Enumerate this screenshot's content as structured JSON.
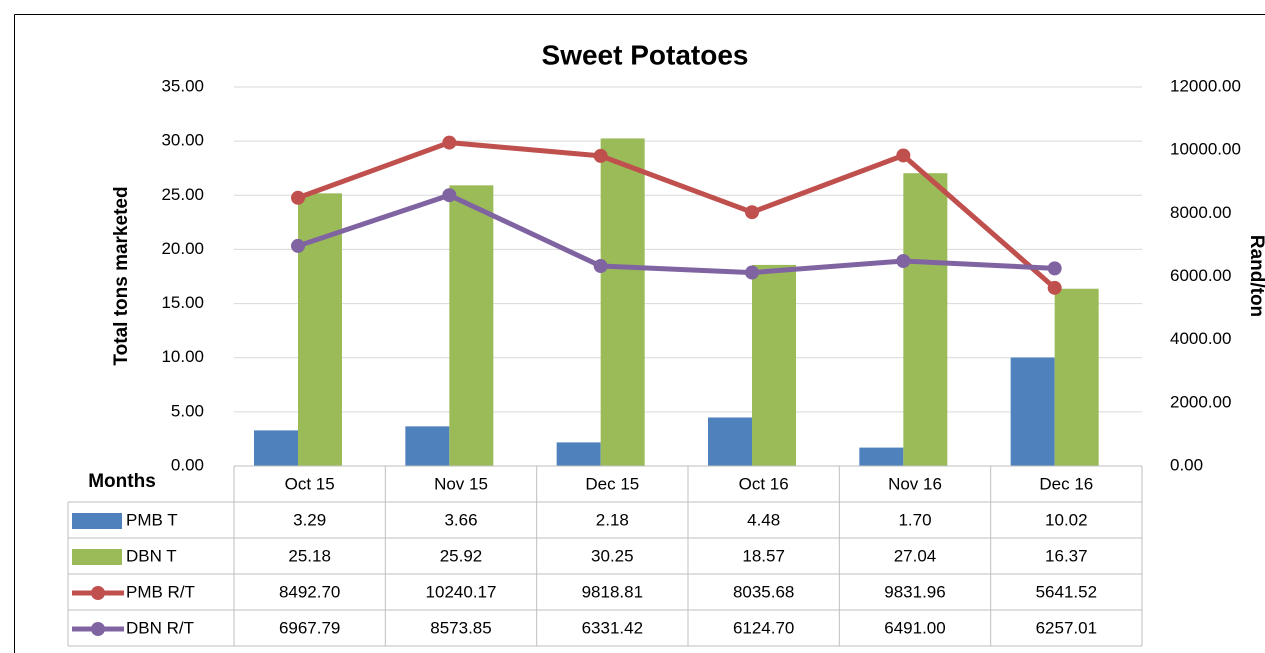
{
  "chart_data": {
    "type": "bar",
    "title": "Sweet Potatoes",
    "ylabel": "Total tons marketed",
    "y2label": "Rand/ton",
    "xlabel": "Months",
    "categories": [
      "Oct 15",
      "Nov 15",
      "Dec 15",
      "Oct 16",
      "Nov 16",
      "Dec 16"
    ],
    "series": [
      {
        "name": "PMB T",
        "type": "bar",
        "color": "#4f81bd",
        "values": [
          3.29,
          3.66,
          2.18,
          4.48,
          1.7,
          10.02
        ],
        "value_labels": [
          "3.29",
          "3.66",
          "2.18",
          "4.48",
          "1.70",
          "10.02"
        ]
      },
      {
        "name": "DBN T",
        "type": "bar",
        "color": "#9bbb59",
        "values": [
          25.18,
          25.92,
          30.25,
          18.57,
          27.04,
          16.37
        ],
        "value_labels": [
          "25.18",
          "25.92",
          "30.25",
          "18.57",
          "27.04",
          "16.37"
        ]
      },
      {
        "name": "PMB R/T",
        "type": "line",
        "axis": "y2",
        "color": "#c0504d",
        "values": [
          8492.7,
          10240.17,
          9818.81,
          8035.68,
          9831.96,
          5641.52
        ],
        "value_labels": [
          "8492.70",
          "10240.17",
          "9818.81",
          "8035.68",
          "9831.96",
          "5641.52"
        ]
      },
      {
        "name": "DBN R/T",
        "type": "line",
        "axis": "y2",
        "color": "#8064a2",
        "values": [
          6967.79,
          8573.85,
          6331.42,
          6124.7,
          6491,
          6257.01
        ],
        "value_labels": [
          "6967.79",
          "8573.85",
          "6331.42",
          "6124.70",
          "6491.00",
          "6257.01"
        ]
      }
    ],
    "ylim": [
      0,
      35
    ],
    "yticks": [
      {
        "value": 0,
        "label": "0.00"
      },
      {
        "value": 5,
        "label": "5.00"
      },
      {
        "value": 10,
        "label": "10.00"
      },
      {
        "value": 15,
        "label": "15.00"
      },
      {
        "value": 20,
        "label": "20.00"
      },
      {
        "value": 25,
        "label": "25.00"
      },
      {
        "value": 30,
        "label": "30.00"
      },
      {
        "value": 35,
        "label": "35.00"
      }
    ],
    "y2lim": [
      0,
      12000
    ],
    "y2ticks": [
      {
        "value": 0,
        "label": "0.00"
      },
      {
        "value": 2000,
        "label": "2000.00"
      },
      {
        "value": 4000,
        "label": "4000.00"
      },
      {
        "value": 6000,
        "label": "6000.00"
      },
      {
        "value": 8000,
        "label": "8000.00"
      },
      {
        "value": 10000,
        "label": "10000.00"
      },
      {
        "value": 12000,
        "label": "12000.00"
      }
    ],
    "grid": true
  }
}
